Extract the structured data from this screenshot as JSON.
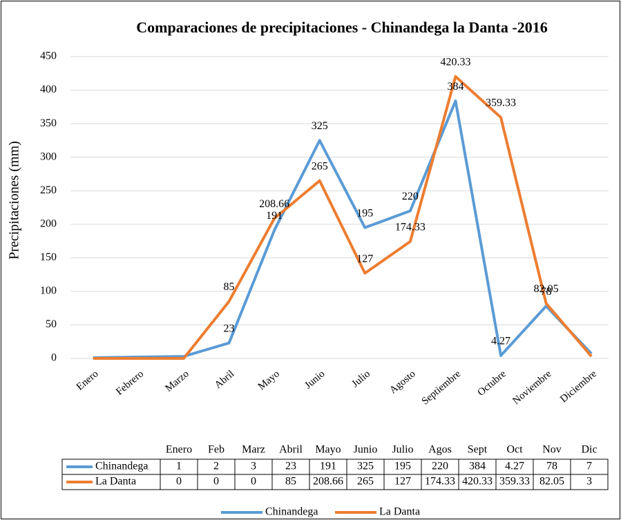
{
  "chart_data": {
    "type": "line",
    "title": "Comparaciones de precipitaciones - Chinandega la Danta -2016",
    "y_label": "Precipitaciones (mm)",
    "categories": [
      "Enero",
      "Febrero",
      "Marzo",
      "Abril",
      "Mayo",
      "Junio",
      "Julio",
      "Agosto",
      "Septiembre",
      "Octubre",
      "Noviembre",
      "Diciembre"
    ],
    "table_categories": [
      "Enero",
      "Feb",
      "Marz",
      "Abril",
      "Mayo",
      "Junio",
      "Julio",
      "Agos",
      "Sept",
      "Oct",
      "Nov",
      "Dic"
    ],
    "series": [
      {
        "name": "Chinandega",
        "color": "#5b9bd5",
        "values": [
          1,
          2,
          3,
          23,
          191,
          325,
          195,
          220,
          384,
          4.27,
          78,
          7
        ]
      },
      {
        "name": "La Danta",
        "color": "#ed7d31",
        "values": [
          0,
          0,
          0,
          85,
          208.66,
          265,
          127,
          174.33,
          420.33,
          359.33,
          82.05,
          3
        ]
      }
    ],
    "ylim": [
      0,
      450
    ],
    "yticks": [
      0,
      50,
      100,
      150,
      200,
      250,
      300,
      350,
      400,
      450
    ],
    "grid": true
  }
}
